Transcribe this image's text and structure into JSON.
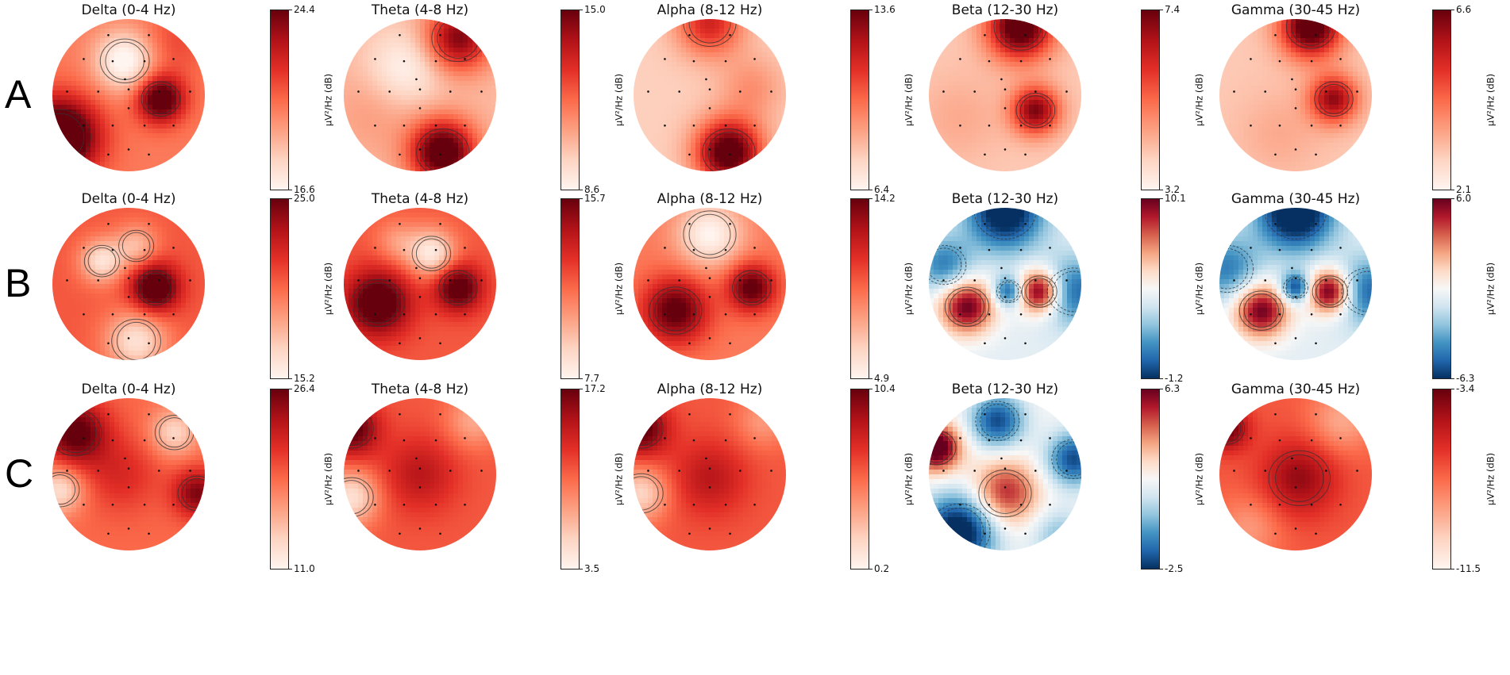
{
  "colormaps": {
    "reds": [
      "#fff5f0",
      "#fdd4c2",
      "#fca082",
      "#fb6a4a",
      "#e32f27",
      "#b11218",
      "#67000d"
    ],
    "rdbu": [
      "#053061",
      "#2166ac",
      "#4393c3",
      "#92c5de",
      "#d1e5f0",
      "#f7f7f7",
      "#fddbc7",
      "#f4a582",
      "#d6604d",
      "#b2182b",
      "#67001f"
    ]
  },
  "rows": [
    {
      "letter": "A",
      "maps": [
        {
          "title": "Delta (0-4 Hz)",
          "unit": "µV²/Hz (dB)",
          "max": "24.4",
          "min": "16.6",
          "cmap": "reds"
        },
        {
          "title": "Theta (4-8 Hz)",
          "unit": "µV²/Hz (dB)",
          "max": "15.0",
          "min": "8.6",
          "cmap": "reds"
        },
        {
          "title": "Alpha (8-12 Hz)",
          "unit": "µV²/Hz (dB)",
          "max": "13.6",
          "min": "6.4",
          "cmap": "reds"
        },
        {
          "title": "Beta (12-30 Hz)",
          "unit": "µV²/Hz (dB)",
          "max": "7.4",
          "min": "3.2",
          "cmap": "reds"
        },
        {
          "title": "Gamma (30-45 Hz)",
          "unit": "µV²/Hz (dB)",
          "max": "6.6",
          "min": "2.1",
          "cmap": "reds"
        }
      ]
    },
    {
      "letter": "B",
      "maps": [
        {
          "title": "Delta (0-4 Hz)",
          "unit": "µV²/Hz (dB)",
          "max": "25.0",
          "min": "15.2",
          "cmap": "reds"
        },
        {
          "title": "Theta (4-8 Hz)",
          "unit": "µV²/Hz (dB)",
          "max": "15.7",
          "min": "7.7",
          "cmap": "reds"
        },
        {
          "title": "Alpha (8-12 Hz)",
          "unit": "µV²/Hz (dB)",
          "max": "14.2",
          "min": "4.9",
          "cmap": "reds"
        },
        {
          "title": "Beta (12-30 Hz)",
          "unit": "µV²/Hz (dB)",
          "max": "10.1",
          "min": "-1.2",
          "cmap": "rdbu"
        },
        {
          "title": "Gamma (30-45 Hz)",
          "unit": "µV²/Hz (dB)",
          "max": "6.0",
          "min": "-6.3",
          "cmap": "rdbu"
        }
      ]
    },
    {
      "letter": "C",
      "maps": [
        {
          "title": "Delta (0-4 Hz)",
          "unit": "µV²/Hz (dB)",
          "max": "26.4",
          "min": "11.0",
          "cmap": "reds"
        },
        {
          "title": "Theta (4-8 Hz)",
          "unit": "µV²/Hz (dB)",
          "max": "17.2",
          "min": "3.5",
          "cmap": "reds"
        },
        {
          "title": "Alpha (8-12 Hz)",
          "unit": "µV²/Hz (dB)",
          "max": "10.4",
          "min": "0.2",
          "cmap": "reds"
        },
        {
          "title": "Beta (12-30 Hz)",
          "unit": "µV²/Hz (dB)",
          "max": "6.3",
          "min": "-2.5",
          "cmap": "rdbu"
        },
        {
          "title": "Gamma (30-45 Hz)",
          "unit": "µV²/Hz (dB)",
          "max": "-3.4",
          "min": "-11.5",
          "cmap": "reds"
        }
      ]
    }
  ]
}
